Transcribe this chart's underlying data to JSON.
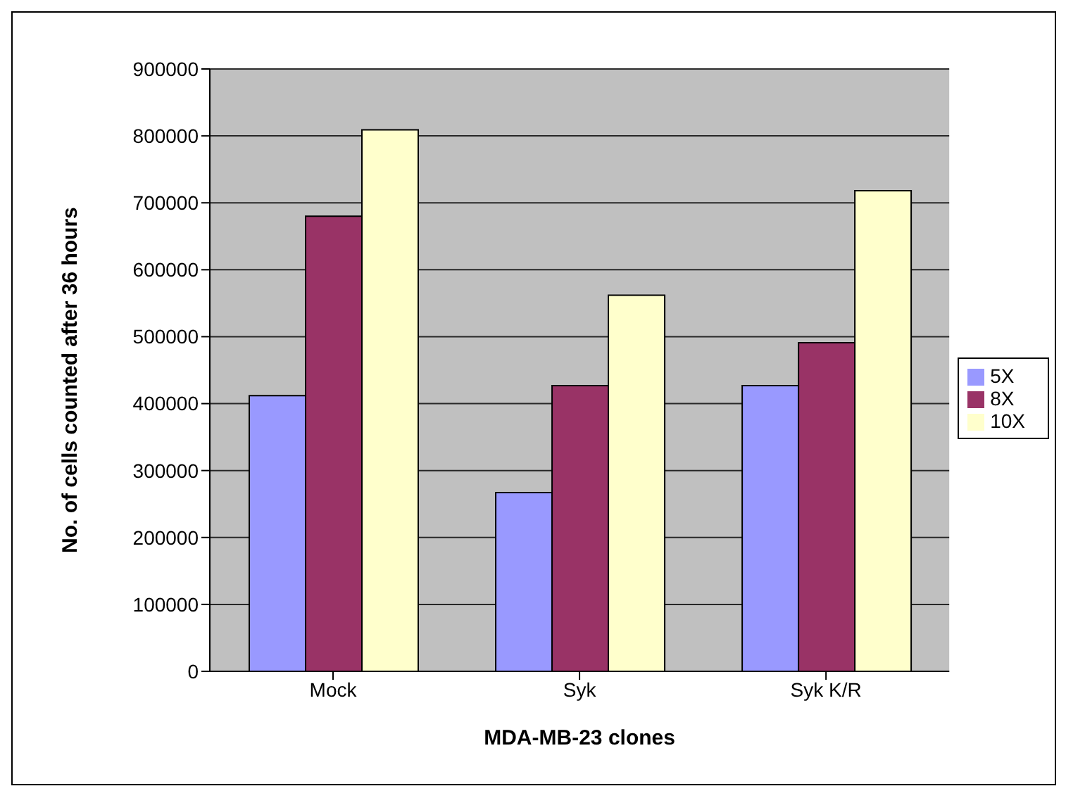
{
  "chart_data": {
    "type": "bar",
    "categories": [
      "Mock",
      "Syk",
      "Syk K/R"
    ],
    "series": [
      {
        "name": "5X",
        "color": "#9999ff",
        "values": [
          412000,
          267000,
          427000
        ]
      },
      {
        "name": "8X",
        "color": "#993366",
        "values": [
          680000,
          427000,
          491000
        ]
      },
      {
        "name": "10X",
        "color": "#ffffcc",
        "values": [
          809000,
          562000,
          718000
        ]
      }
    ],
    "xlabel": "MDA-MB-23 clones",
    "ylabel": "No. of cells counted after 36 hours",
    "ylim": [
      0,
      900000
    ],
    "yticks": [
      0,
      100000,
      200000,
      300000,
      400000,
      500000,
      600000,
      700000,
      800000,
      900000
    ],
    "grid": "y",
    "legend": "right"
  }
}
